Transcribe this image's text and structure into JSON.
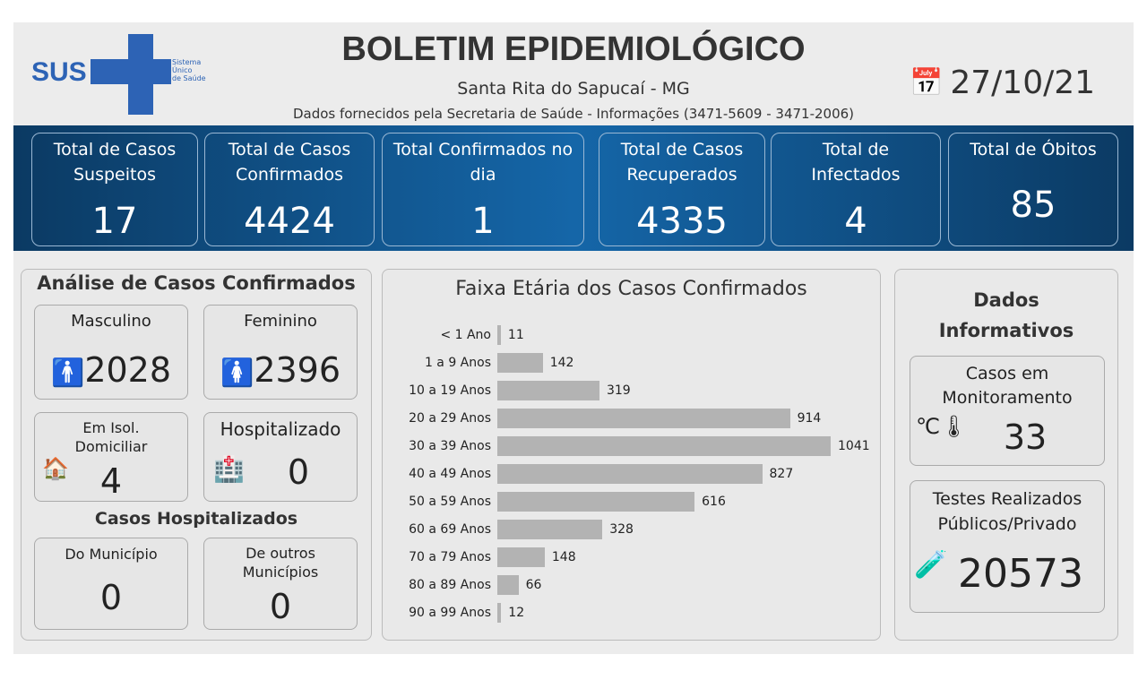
{
  "header": {
    "title": "BOLETIM EPIDEMIOLÓGICO",
    "subtitle": "Santa Rita do Sapucaí - MG",
    "source": "Dados fornecidos pela Secretaria de Saúde - Informações (3471-5609 - 3471-2006)",
    "date": "27/10/21",
    "logo": {
      "text": "SUS",
      "tagline": [
        "Sistema",
        "Único",
        "de Saúde"
      ],
      "color": "#2d63b5"
    }
  },
  "kpis": [
    {
      "label": "Total de Casos Suspeitos",
      "value": "17"
    },
    {
      "label": "Total de Casos Confirmados",
      "value": "4424"
    },
    {
      "label": "Total Confirmados no dia",
      "value": "1"
    },
    {
      "label": "Total de Casos Recuperados",
      "value": "4335"
    },
    {
      "label": "Total de Infectados",
      "value": "4"
    },
    {
      "label": "Total de Óbitos",
      "value": "85"
    }
  ],
  "analysis": {
    "title": "Análise de Casos Confirmados",
    "male": {
      "label": "Masculino",
      "value": "2028"
    },
    "female": {
      "label": "Feminino",
      "value": "2396"
    },
    "isolation": {
      "label": "Em Isol. Domiciliar",
      "value": "4"
    },
    "hospitalized": {
      "label": "Hospitalizado",
      "value": "0"
    },
    "hosp_title": "Casos Hospitalizados",
    "municipal": {
      "label": "Do Município",
      "value": "0"
    },
    "other": {
      "label": "De outros Municípios",
      "value": "0"
    }
  },
  "chart_data": {
    "type": "bar",
    "orientation": "horizontal",
    "title": "Faixa Etária dos Casos Confirmados",
    "categories": [
      "< 1 Ano",
      "1 a 9 Anos",
      "10 a 19 Anos",
      "20 a 29 Anos",
      "30 a 39 Anos",
      "40 a 49 Anos",
      "50 a 59 Anos",
      "60 a 69 Anos",
      "70 a 79 Anos",
      "80 a 89 Anos",
      "90 a 99 Anos"
    ],
    "values": [
      11,
      142,
      319,
      914,
      1041,
      827,
      616,
      328,
      148,
      66,
      12
    ],
    "color": "#b3b3b3"
  },
  "info": {
    "title": "Dados Informativos",
    "monitoring": {
      "label": "Casos em Monitoramento",
      "value": "33"
    },
    "tests": {
      "label": "Testes Realizados Públicos/Privado",
      "value": "20573"
    }
  }
}
